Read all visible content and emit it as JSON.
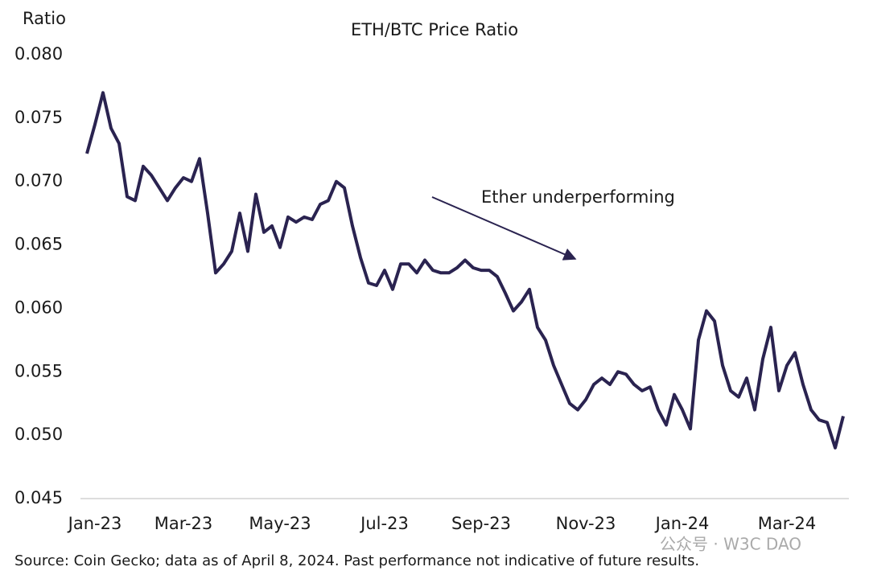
{
  "chart_data": {
    "type": "line",
    "title": "ETH/BTC Price Ratio",
    "y_label": "Ratio",
    "annotation": "Ether underperforming",
    "source": "Source: Coin Gecko; data as of April 8, 2024. Past performance not indicative of future results.",
    "watermark": "公众号 · W3C DAO",
    "categories": [
      null,
      "Jan-23",
      null,
      null,
      null,
      null,
      null,
      null,
      null,
      null,
      null,
      null,
      "Mar-23",
      null,
      null,
      null,
      null,
      null,
      null,
      null,
      null,
      null,
      null,
      null,
      "May-23",
      null,
      null,
      null,
      null,
      null,
      null,
      null,
      null,
      null,
      null,
      null,
      null,
      "Jul-23",
      null,
      null,
      null,
      null,
      null,
      null,
      null,
      null,
      null,
      null,
      null,
      "Sep-23",
      null,
      null,
      null,
      null,
      null,
      null,
      null,
      null,
      null,
      null,
      null,
      null,
      "Nov-23",
      null,
      null,
      null,
      null,
      null,
      null,
      null,
      null,
      null,
      null,
      null,
      "Jan-24",
      null,
      null,
      null,
      null,
      null,
      null,
      null,
      null,
      null,
      null,
      null,
      null,
      "Mar-24",
      null,
      null,
      null,
      null,
      null,
      null,
      null
    ],
    "series": [
      {
        "name": "ETH/BTC",
        "color": "#2a2350",
        "values": [
          0.0722,
          0.0745,
          0.077,
          0.0742,
          0.073,
          0.0688,
          0.0685,
          0.0712,
          0.0705,
          0.0695,
          0.0685,
          0.0695,
          0.0703,
          0.07,
          0.0718,
          0.0675,
          0.0628,
          0.0635,
          0.0645,
          0.0675,
          0.0645,
          0.069,
          0.066,
          0.0665,
          0.0648,
          0.0672,
          0.0668,
          0.0672,
          0.067,
          0.0682,
          0.0685,
          0.07,
          0.0695,
          0.0665,
          0.064,
          0.062,
          0.0618,
          0.063,
          0.0615,
          0.0635,
          0.0635,
          0.0628,
          0.0638,
          0.063,
          0.0628,
          0.0628,
          0.0632,
          0.0638,
          0.0632,
          0.063,
          0.063,
          0.0625,
          0.0612,
          0.0598,
          0.0605,
          0.0615,
          0.0585,
          0.0575,
          0.0555,
          0.054,
          0.0525,
          0.052,
          0.0528,
          0.054,
          0.0545,
          0.054,
          0.055,
          0.0548,
          0.054,
          0.0535,
          0.0538,
          0.052,
          0.0508,
          0.0532,
          0.052,
          0.0505,
          0.0575,
          0.0598,
          0.059,
          0.0555,
          0.0535,
          0.053,
          0.0545,
          0.052,
          0.056,
          0.0585,
          0.0535,
          0.0555,
          0.0565,
          0.054,
          0.052,
          0.0512,
          0.051,
          0.049,
          0.0515
        ]
      }
    ],
    "ylim": [
      0.045,
      0.08
    ],
    "yticks": [
      {
        "value": 0.045,
        "label": "0.045"
      },
      {
        "value": 0.05,
        "label": "0.050"
      },
      {
        "value": 0.055,
        "label": "0.055"
      },
      {
        "value": 0.06,
        "label": "0.060"
      },
      {
        "value": 0.065,
        "label": "0.065"
      },
      {
        "value": 0.07,
        "label": "0.070"
      },
      {
        "value": 0.075,
        "label": "0.075"
      },
      {
        "value": 0.08,
        "label": "0.080"
      }
    ],
    "grid": false
  }
}
